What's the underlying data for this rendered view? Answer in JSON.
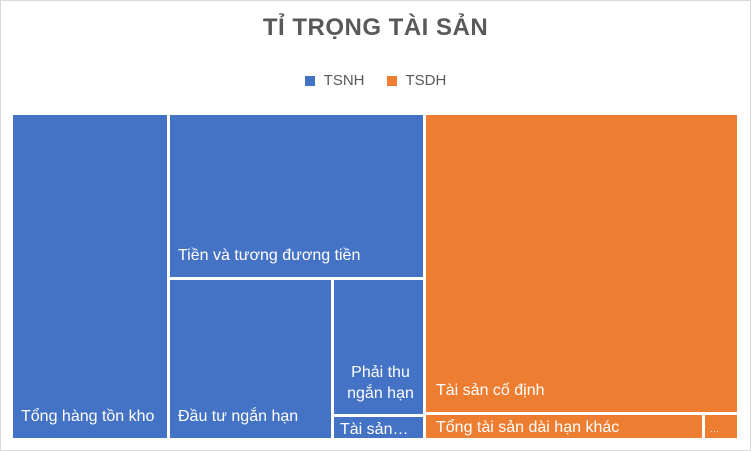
{
  "chart_data": {
    "type": "treemap",
    "title": "TỈ TRỌNG TÀI SẢN",
    "legend": {
      "placement": "top",
      "entries": [
        {
          "name": "TSNH",
          "color": "#4472C4"
        },
        {
          "name": "TSDH",
          "color": "#ED7D31"
        }
      ]
    },
    "series": [
      {
        "name": "TSNH",
        "color": "#4472C4",
        "items": [
          {
            "label": "Tổng hàng tồn kho",
            "value": 19
          },
          {
            "label": "Tiền và tương đương tiền",
            "value": 14.5
          },
          {
            "label": "Đầu tư ngắn hạn",
            "value": 11.5
          },
          {
            "label": "Phải thu ngắn hạn",
            "value": 4.3
          },
          {
            "label": "Tài sản…",
            "value": 0.8
          }
        ]
      },
      {
        "name": "TSDH",
        "color": "#ED7D31",
        "items": [
          {
            "label": "Tài sản cố định",
            "value": 46
          },
          {
            "label": "Tổng tài sản dài hạn khác",
            "value": 3.5
          },
          {
            "label": "…",
            "value": 0.4
          }
        ]
      }
    ]
  }
}
